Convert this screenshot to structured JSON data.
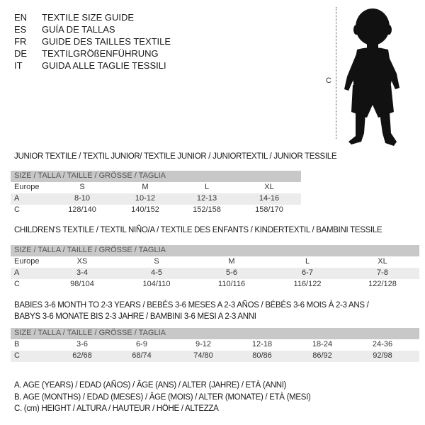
{
  "languages": [
    {
      "code": "EN",
      "title": "TEXTILE SIZE GUIDE"
    },
    {
      "code": "ES",
      "title": "GUÍA DE TALLAS"
    },
    {
      "code": "FR",
      "title": "GUIDE DES TAILLES TEXTILE"
    },
    {
      "code": "DE",
      "title": "TEXTILGRÖßENFÜHRUNG"
    },
    {
      "code": "IT",
      "title": "GUIDA ALLE TAGLIE TESSILI"
    }
  ],
  "figure": {
    "measure_label": "C",
    "icon": "baby-silhouette"
  },
  "junior": {
    "title": "JUNIOR TEXTILE / TEXTIL JUNIOR/ TEXTILE JUNIOR / JUNIORTEXTIL / JUNIOR TESSILE",
    "header": "SIZE / TALLA / TAILLE / GRÖSSE / TAGLIA",
    "rows": [
      {
        "label": "Europe",
        "cells": [
          "S",
          "M",
          "L",
          "XL"
        ]
      },
      {
        "label": "A",
        "cells": [
          "8-10",
          "10-12",
          "12-13",
          "14-16"
        ]
      },
      {
        "label": "C",
        "cells": [
          "128/140",
          "140/152",
          "152/158",
          "158/170"
        ]
      }
    ]
  },
  "children": {
    "title": "CHILDREN'S TEXTILE / TEXTIL NIÑO/A / TEXTILE DES ENFANTS / KINDERTEXTIL / BAMBINI TESSILE",
    "header": "SIZE / TALLA / TAILLE / GRÖSSE / TAGLIA",
    "rows": [
      {
        "label": "Europe",
        "cells": [
          "XS",
          "S",
          "M",
          "L",
          "XL"
        ]
      },
      {
        "label": "A",
        "cells": [
          "3-4",
          "4-5",
          "5-6",
          "6-7",
          "7-8"
        ]
      },
      {
        "label": "C",
        "cells": [
          "98/104",
          "104/110",
          "110/116",
          "116/122",
          "122/128"
        ]
      }
    ]
  },
  "babies": {
    "title_line1": "BABIES 3-6 MONTH TO 2-3 YEARS / BEBÉS 3-6 MESES A 2-3 AÑOS / BÉBÉS 3-6 MOIS À 2-3 ANS /",
    "title_line2": "BABYS 3-6 MONATE BIS 2-3 JAHRE / BAMBINI 3-6 MESI A 2-3 ANNI",
    "header": "SIZE / TALLA / TAILLE / GRÖSSE / TAGLIA",
    "rows": [
      {
        "label": "B",
        "cells": [
          "3-6",
          "6-9",
          "9-12",
          "12-18",
          "18-24",
          "24-36"
        ]
      },
      {
        "label": "C",
        "cells": [
          "62/68",
          "68/74",
          "74/80",
          "80/86",
          "86/92",
          "92/98"
        ]
      }
    ]
  },
  "legend": [
    "A. AGE (YEARS) / EDAD (AÑOS) / ÂGE (ANS) / ALTER (JAHRE) / ETÀ (ANNI)",
    "B. AGE (MONTHS) / EDAD (MESES) / ÂGE (MOIS) / ALTER (MONATE) / ETÀ (MESI)",
    "C. (cm) HEIGHT / ALTURA / HAUTEUR / HÖHE / ALTEZZA"
  ]
}
